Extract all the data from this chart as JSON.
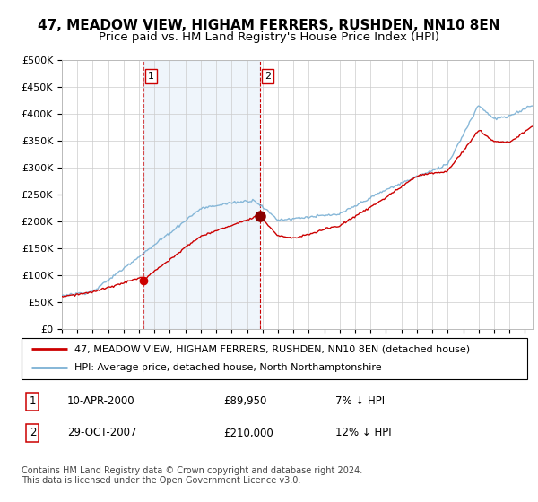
{
  "title": "47, MEADOW VIEW, HIGHAM FERRERS, RUSHDEN, NN10 8EN",
  "subtitle": "Price paid vs. HM Land Registry's House Price Index (HPI)",
  "ylabel_ticks": [
    "£0",
    "£50K",
    "£100K",
    "£150K",
    "£200K",
    "£250K",
    "£300K",
    "£350K",
    "£400K",
    "£450K",
    "£500K"
  ],
  "ytick_values": [
    0,
    50000,
    100000,
    150000,
    200000,
    250000,
    300000,
    350000,
    400000,
    450000,
    500000
  ],
  "ylim": [
    0,
    500000
  ],
  "xlim_start": 1995.0,
  "xlim_end": 2025.5,
  "sale1_x": 2000.27,
  "sale1_y": 89950,
  "sale1_label": "1",
  "sale1_date": "10-APR-2000",
  "sale1_price": "£89,950",
  "sale1_hpi": "7% ↓ HPI",
  "sale2_x": 2007.83,
  "sale2_y": 210000,
  "sale2_label": "2",
  "sale2_date": "29-OCT-2007",
  "sale2_price": "£210,000",
  "sale2_hpi": "12% ↓ HPI",
  "line_color_red": "#cc0000",
  "line_color_blue": "#7ab0d4",
  "vline_color": "#cc0000",
  "vline_color1": "#aaaaaa",
  "shade_color": "#ddeeff",
  "grid_color": "#cccccc",
  "background_color": "#ffffff",
  "legend_label_red": "47, MEADOW VIEW, HIGHAM FERRERS, RUSHDEN, NN10 8EN (detached house)",
  "legend_label_blue": "HPI: Average price, detached house, North Northamptonshire",
  "footnote": "Contains HM Land Registry data © Crown copyright and database right 2024.\nThis data is licensed under the Open Government Licence v3.0.",
  "title_fontsize": 11,
  "subtitle_fontsize": 9.5,
  "tick_fontsize": 8,
  "legend_fontsize": 8,
  "footnote_fontsize": 7
}
